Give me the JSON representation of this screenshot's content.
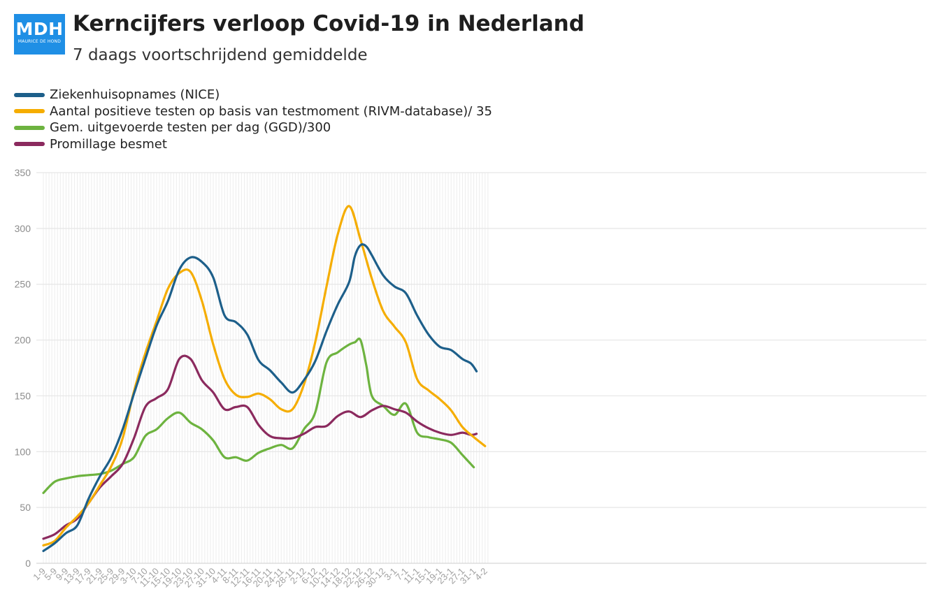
{
  "header": {
    "logo_text": "MDH",
    "logo_subtext": "MAURICE DE HOND",
    "title": "Kerncijfers verloop Covid-19 in Nederland",
    "subtitle": "7 daags voortschrijdend gemiddelde"
  },
  "chart_data": {
    "type": "line",
    "title": "Kerncijfers verloop Covid-19 in Nederland",
    "subtitle": "7 daags voortschrijdend gemiddelde",
    "xlabel": "",
    "ylabel": "",
    "ylim": [
      0,
      350
    ],
    "yticks": [
      0,
      50,
      100,
      150,
      200,
      250,
      300,
      350
    ],
    "grid": true,
    "legend_position": "top-left",
    "x_labels": [
      "1-9",
      "5-9",
      "9-9",
      "13-9",
      "17-9",
      "21-9",
      "25-9",
      "29-9",
      "3-10",
      "7-10",
      "11-10",
      "15-10",
      "19-10",
      "23-10",
      "27-10",
      "31-10",
      "4-11",
      "8-11",
      "12-11",
      "16-11",
      "20-11",
      "24-11",
      "28-11",
      "2-12",
      "6-12",
      "10-12",
      "14-12",
      "18-12",
      "22-12",
      "26-12",
      "30-12",
      "3-1",
      "7-1",
      "11-1",
      "15-1",
      "19-1",
      "23-1",
      "27-1",
      "31-1",
      "4-2"
    ],
    "x_days_total": 157,
    "series": [
      {
        "name": "Ziekenhuisopnames (NICE)",
        "color": "#1d5f8a",
        "points": [
          [
            0,
            11
          ],
          [
            4,
            18
          ],
          [
            8,
            27
          ],
          [
            12,
            34
          ],
          [
            16,
            58
          ],
          [
            20,
            78
          ],
          [
            24,
            95
          ],
          [
            28,
            120
          ],
          [
            32,
            152
          ],
          [
            36,
            183
          ],
          [
            40,
            213
          ],
          [
            44,
            235
          ],
          [
            48,
            263
          ],
          [
            52,
            274
          ],
          [
            56,
            270
          ],
          [
            60,
            256
          ],
          [
            64,
            222
          ],
          [
            68,
            216
          ],
          [
            72,
            205
          ],
          [
            76,
            182
          ],
          [
            80,
            173
          ],
          [
            84,
            162
          ],
          [
            88,
            153
          ],
          [
            92,
            164
          ],
          [
            96,
            181
          ],
          [
            100,
            208
          ],
          [
            104,
            232
          ],
          [
            108,
            252
          ],
          [
            110,
            275
          ],
          [
            112,
            285
          ],
          [
            114,
            284
          ],
          [
            116,
            276
          ],
          [
            120,
            258
          ],
          [
            124,
            248
          ],
          [
            128,
            242
          ],
          [
            132,
            222
          ],
          [
            136,
            205
          ],
          [
            140,
            194
          ],
          [
            144,
            191
          ],
          [
            148,
            183
          ],
          [
            151,
            179
          ],
          [
            153,
            172
          ]
        ]
      },
      {
        "name": "Aantal positieve testen op basis van testmoment (RIVM-database)/ 35",
        "color": "#f5ad00",
        "points": [
          [
            0,
            16
          ],
          [
            4,
            20
          ],
          [
            8,
            32
          ],
          [
            12,
            42
          ],
          [
            16,
            54
          ],
          [
            20,
            70
          ],
          [
            24,
            87
          ],
          [
            28,
            112
          ],
          [
            32,
            154
          ],
          [
            36,
            188
          ],
          [
            40,
            217
          ],
          [
            44,
            246
          ],
          [
            48,
            260
          ],
          [
            52,
            261
          ],
          [
            56,
            235
          ],
          [
            60,
            196
          ],
          [
            64,
            165
          ],
          [
            68,
            151
          ],
          [
            72,
            149
          ],
          [
            76,
            152
          ],
          [
            80,
            147
          ],
          [
            84,
            138
          ],
          [
            88,
            138
          ],
          [
            92,
            160
          ],
          [
            96,
            198
          ],
          [
            100,
            248
          ],
          [
            104,
            295
          ],
          [
            108,
            320
          ],
          [
            112,
            290
          ],
          [
            116,
            255
          ],
          [
            120,
            226
          ],
          [
            124,
            212
          ],
          [
            128,
            198
          ],
          [
            132,
            165
          ],
          [
            136,
            155
          ],
          [
            140,
            147
          ],
          [
            144,
            137
          ],
          [
            148,
            122
          ],
          [
            152,
            113
          ],
          [
            156,
            105
          ]
        ]
      },
      {
        "name": "Gem. uitgevoerde testen per dag (GGD)/300",
        "color": "#6db33f",
        "points": [
          [
            0,
            63
          ],
          [
            4,
            73
          ],
          [
            8,
            76
          ],
          [
            12,
            78
          ],
          [
            16,
            79
          ],
          [
            20,
            80
          ],
          [
            24,
            83
          ],
          [
            28,
            89
          ],
          [
            32,
            95
          ],
          [
            36,
            114
          ],
          [
            40,
            120
          ],
          [
            44,
            130
          ],
          [
            48,
            135
          ],
          [
            52,
            126
          ],
          [
            56,
            120
          ],
          [
            60,
            110
          ],
          [
            64,
            95
          ],
          [
            68,
            95
          ],
          [
            72,
            92
          ],
          [
            76,
            99
          ],
          [
            80,
            103
          ],
          [
            84,
            106
          ],
          [
            88,
            103
          ],
          [
            92,
            120
          ],
          [
            96,
            135
          ],
          [
            100,
            180
          ],
          [
            104,
            189
          ],
          [
            108,
            196
          ],
          [
            110,
            198
          ],
          [
            112,
            200
          ],
          [
            114,
            178
          ],
          [
            116,
            150
          ],
          [
            120,
            141
          ],
          [
            124,
            133
          ],
          [
            128,
            143
          ],
          [
            132,
            117
          ],
          [
            136,
            113
          ],
          [
            140,
            111
          ],
          [
            144,
            108
          ],
          [
            148,
            97
          ],
          [
            152,
            86
          ]
        ]
      },
      {
        "name": "Promillage besmet",
        "color": "#8b2a5e",
        "points": [
          [
            0,
            22
          ],
          [
            4,
            26
          ],
          [
            8,
            34
          ],
          [
            12,
            40
          ],
          [
            16,
            54
          ],
          [
            20,
            68
          ],
          [
            24,
            78
          ],
          [
            28,
            89
          ],
          [
            32,
            112
          ],
          [
            36,
            140
          ],
          [
            40,
            148
          ],
          [
            44,
            156
          ],
          [
            48,
            183
          ],
          [
            52,
            183
          ],
          [
            56,
            164
          ],
          [
            60,
            153
          ],
          [
            64,
            138
          ],
          [
            68,
            140
          ],
          [
            72,
            140
          ],
          [
            76,
            124
          ],
          [
            80,
            114
          ],
          [
            84,
            112
          ],
          [
            88,
            112
          ],
          [
            92,
            116
          ],
          [
            96,
            122
          ],
          [
            100,
            123
          ],
          [
            104,
            132
          ],
          [
            108,
            136
          ],
          [
            112,
            131
          ],
          [
            116,
            137
          ],
          [
            120,
            141
          ],
          [
            124,
            138
          ],
          [
            128,
            135
          ],
          [
            132,
            127
          ],
          [
            136,
            121
          ],
          [
            140,
            117
          ],
          [
            144,
            115
          ],
          [
            148,
            117
          ],
          [
            151,
            115
          ],
          [
            153,
            116
          ]
        ]
      }
    ]
  }
}
